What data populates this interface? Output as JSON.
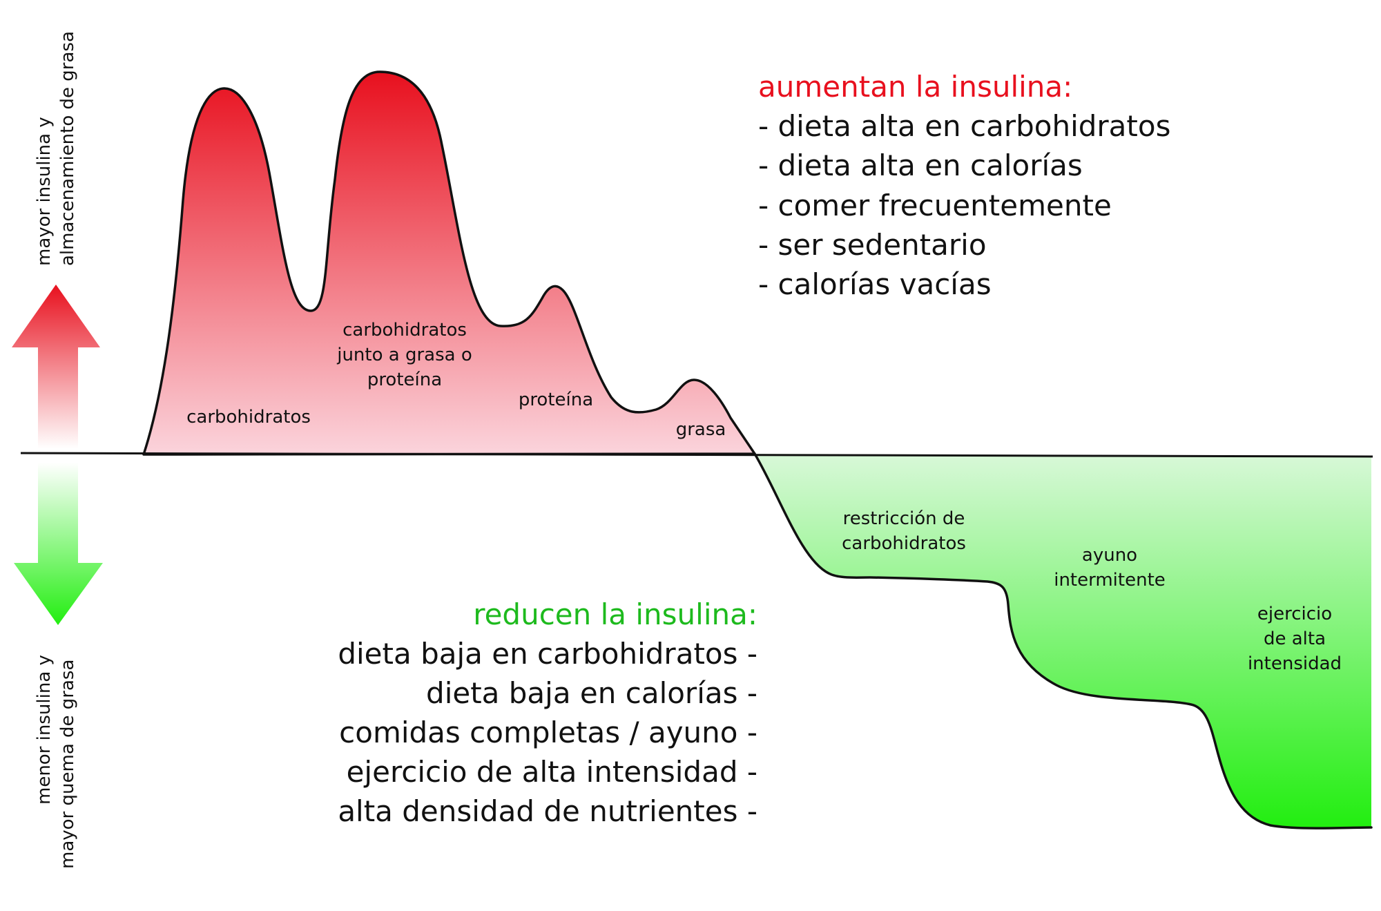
{
  "colors": {
    "increase": "#e8101e",
    "increase_light": "#fbd4dc",
    "decrease": "#1dba1d",
    "decrease_bright": "#22ee10",
    "decrease_light": "#d8f8d8",
    "ink": "#111111"
  },
  "axis": {
    "up_label_line1": "mayor insulina y",
    "up_label_line2": "almacenamiento de grasa",
    "down_label_line1": "menor insulina y",
    "down_label_line2": "mayor quema de grasa"
  },
  "curve_labels": {
    "carbs": "carbohidratos",
    "mixed_line1": "carbohidratos",
    "mixed_line2": "junto a grasa o",
    "mixed_line3": "proteína",
    "protein": "proteína",
    "fat": "grasa",
    "restriction_line1": "restricción de",
    "restriction_line2": "carbohidratos",
    "fasting_line1": "ayuno",
    "fasting_line2": "intermitente",
    "exercise_line1": "ejercicio",
    "exercise_line2": "de alta",
    "exercise_line3": "intensidad"
  },
  "increase_list": {
    "title": "aumentan la insulina:",
    "items": [
      "- dieta alta en carbohidratos",
      "- dieta alta en calorías",
      "- comer frecuentemente",
      "- ser sedentario",
      "- calorías vacías"
    ]
  },
  "decrease_list": {
    "title": "reducen la insulina:",
    "items": [
      "dieta baja en carbohidratos -",
      "dieta baja en calorías -",
      "comidas completas / ayuno -",
      "ejercicio de alta intensidad -",
      "alta densidad de nutrientes -"
    ]
  }
}
